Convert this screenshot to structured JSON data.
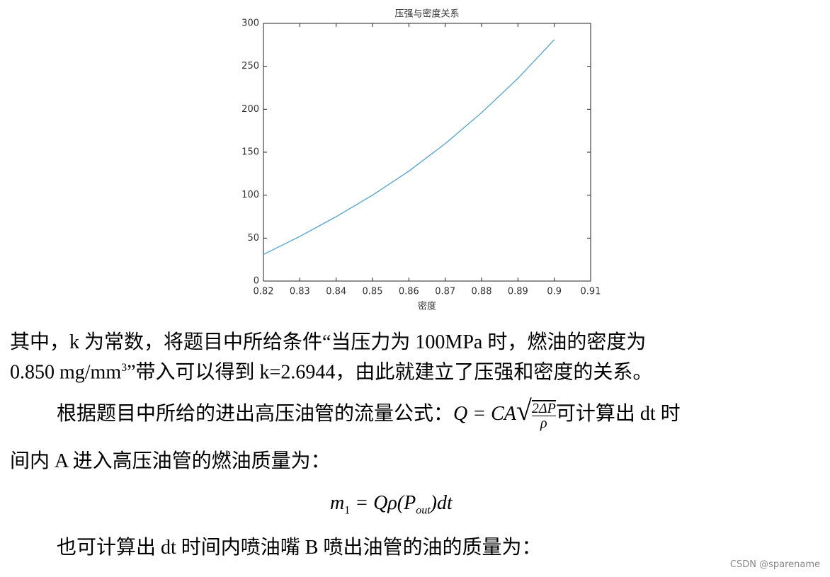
{
  "chart_data": {
    "type": "line",
    "title": "压强与密度关系",
    "xlabel": "密度",
    "x": [
      0.82,
      0.83,
      0.84,
      0.85,
      0.86,
      0.87,
      0.88,
      0.89,
      0.9
    ],
    "series": [
      {
        "color": "#4da3d8",
        "values": [
          31,
          52,
          75,
          100,
          128,
          160,
          196,
          236,
          281
        ]
      }
    ],
    "xlim": [
      0.82,
      0.91
    ],
    "xticks": [
      0.82,
      0.83,
      0.84,
      0.85,
      0.86,
      0.87,
      0.88,
      0.89,
      0.9,
      0.91
    ],
    "ylim": [
      0,
      300
    ],
    "yticks": [
      0,
      50,
      100,
      150,
      200,
      250,
      300
    ],
    "grid": false
  },
  "document": {
    "p1": {
      "line1": "其中，k 为常数，将题目中所给条件“当压力为 100MPa 时，燃油的密度为",
      "line2a": "0.850 mg/mm",
      "sup": "3",
      "line2b": "”带入可以得到 k=2.6944，由此就建立了压强和密度的关系。"
    },
    "p2": {
      "line1a": "根据题目中所给的进出高压油管的流量公式：",
      "formula": "Q = CA",
      "num": "2ΔP",
      "den": "ρ",
      "line1b": "可计算出 dt 时",
      "line2": "间内 A 进入高压油管的燃油质量为："
    },
    "eq": {
      "m": "m",
      "sub1": "1",
      "mid": " = Qρ(P",
      "sub2": "out",
      "end": ")dt"
    },
    "p3": "也可计算出 dt 时间内喷油嘴 B 喷出油管的油的质量为：",
    "watermark": "CSDN @sparename"
  }
}
